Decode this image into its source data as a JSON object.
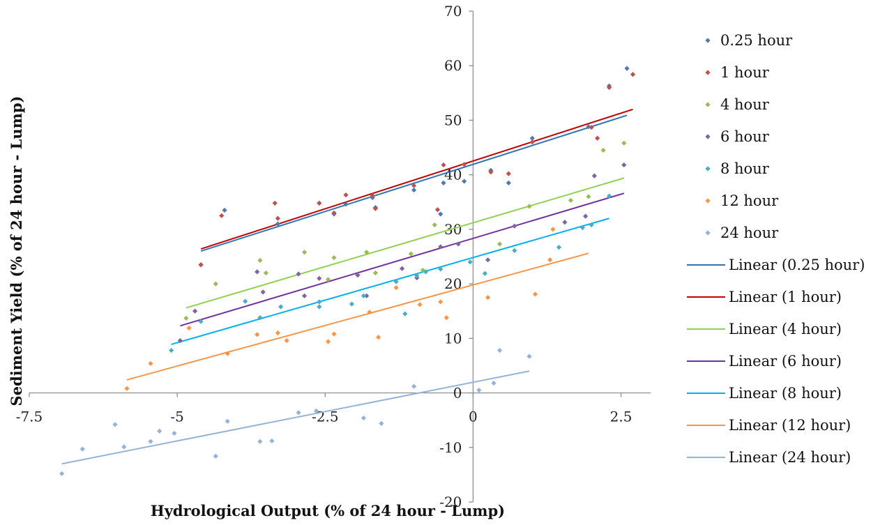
{
  "chart_data": {
    "type": "scatter",
    "title": "",
    "xlabel": "Hydrological Output (% of 24 hour - Lump)",
    "ylabel": "Sediment Yield (% of 24 hour - Lump)",
    "xlim": [
      -7.5,
      3
    ],
    "ylim": [
      -20,
      70
    ],
    "x_ticks": [
      "-7.5",
      "-5",
      "-2.5",
      "0",
      "2.5"
    ],
    "y_ticks": [
      "-20",
      "-10",
      "0",
      "10",
      "20",
      "30",
      "40",
      "50",
      "60",
      "70"
    ],
    "x_tick_values": [
      -7.5,
      -5,
      -2.5,
      0,
      2.5
    ],
    "y_tick_values": [
      -20,
      -10,
      0,
      10,
      20,
      30,
      40,
      50,
      60,
      70
    ],
    "legend_position": "right",
    "grid": false,
    "series": [
      {
        "name": "0.25 hour",
        "color": "#4a7bb5",
        "points": [
          [
            -4.6,
            23.5
          ],
          [
            -4.2,
            33.5
          ],
          [
            -3.3,
            31
          ],
          [
            -2.6,
            34.8
          ],
          [
            -2.35,
            32.8
          ],
          [
            -2.15,
            34.6
          ],
          [
            -1.7,
            35.8
          ],
          [
            -1.65,
            34
          ],
          [
            -1.0,
            37.2
          ],
          [
            -0.55,
            32.8
          ],
          [
            -0.5,
            38.5
          ],
          [
            -0.15,
            38.8
          ],
          [
            0.3,
            40.8
          ],
          [
            0.6,
            38.5
          ],
          [
            1.0,
            46.7
          ],
          [
            1.95,
            48.8
          ],
          [
            2.3,
            56.3
          ],
          [
            2.6,
            59.5
          ]
        ]
      },
      {
        "name": "1 hour",
        "color": "#c0504d",
        "points": [
          [
            -4.6,
            23.5
          ],
          [
            -4.25,
            32.5
          ],
          [
            -3.35,
            34.8
          ],
          [
            -3.3,
            32
          ],
          [
            -2.6,
            34.8
          ],
          [
            -2.35,
            33
          ],
          [
            -2.15,
            36.3
          ],
          [
            -1.7,
            36.2
          ],
          [
            -1.65,
            33.8
          ],
          [
            -1.0,
            38
          ],
          [
            -0.6,
            33.6
          ],
          [
            -0.5,
            41.8
          ],
          [
            -0.15,
            41.9
          ],
          [
            0.3,
            40.5
          ],
          [
            0.6,
            40.2
          ],
          [
            1.0,
            46
          ],
          [
            2.0,
            48.7
          ],
          [
            2.1,
            46.7
          ],
          [
            2.3,
            56
          ],
          [
            2.7,
            58.4
          ]
        ]
      },
      {
        "name": "4 hour",
        "color": "#9bbb59",
        "points": [
          [
            -4.85,
            13.7
          ],
          [
            -4.35,
            20
          ],
          [
            -3.6,
            24.3
          ],
          [
            -3.5,
            22
          ],
          [
            -2.85,
            25.8
          ],
          [
            -2.45,
            20.8
          ],
          [
            -2.35,
            24.8
          ],
          [
            -1.95,
            21.6
          ],
          [
            -1.8,
            25.8
          ],
          [
            -1.65,
            22
          ],
          [
            -1.2,
            22.8
          ],
          [
            -1.05,
            25.5
          ],
          [
            -0.85,
            22.5
          ],
          [
            -0.65,
            30.8
          ],
          [
            0.45,
            27.3
          ],
          [
            0.95,
            34.2
          ],
          [
            1.65,
            35.3
          ],
          [
            1.95,
            36
          ],
          [
            2.2,
            44.5
          ],
          [
            2.55,
            45.8
          ]
        ]
      },
      {
        "name": "6 hour",
        "color": "#8064a2",
        "points": [
          [
            -4.95,
            9.6
          ],
          [
            -4.7,
            15
          ],
          [
            -3.65,
            22.2
          ],
          [
            -3.55,
            18.5
          ],
          [
            -2.95,
            21.8
          ],
          [
            -2.85,
            17.8
          ],
          [
            -2.6,
            21
          ],
          [
            -1.95,
            21.6
          ],
          [
            -1.8,
            17.8
          ],
          [
            -1.2,
            22.8
          ],
          [
            -0.95,
            21.1
          ],
          [
            -0.55,
            26.8
          ],
          [
            -0.25,
            27.3
          ],
          [
            0.25,
            24.4
          ],
          [
            0.7,
            30.6
          ],
          [
            1.55,
            31.3
          ],
          [
            1.9,
            32.4
          ],
          [
            2.05,
            39.8
          ],
          [
            2.55,
            41.8
          ]
        ]
      },
      {
        "name": "8 hour",
        "color": "#4bacc6",
        "points": [
          [
            -5.1,
            7.8
          ],
          [
            -4.6,
            13.1
          ],
          [
            -3.85,
            16.8
          ],
          [
            -3.6,
            13.8
          ],
          [
            -3.25,
            15.8
          ],
          [
            -2.6,
            16.7
          ],
          [
            -2.6,
            15.8
          ],
          [
            -2.05,
            16.3
          ],
          [
            -1.85,
            17.8
          ],
          [
            -1.3,
            20.4
          ],
          [
            -1.15,
            14.5
          ],
          [
            -0.95,
            21.5
          ],
          [
            -0.8,
            22.2
          ],
          [
            -0.55,
            22.7
          ],
          [
            -0.05,
            24
          ],
          [
            0.2,
            21.9
          ],
          [
            0.7,
            26.1
          ],
          [
            1.45,
            26.7
          ],
          [
            1.85,
            30.3
          ],
          [
            2.0,
            30.8
          ],
          [
            2.3,
            36.1
          ]
        ]
      },
      {
        "name": "12 hour",
        "color": "#f79646",
        "points": [
          [
            -5.85,
            0.8
          ],
          [
            -5.45,
            5.4
          ],
          [
            -4.8,
            11.9
          ],
          [
            -4.15,
            7.2
          ],
          [
            -3.65,
            10.7
          ],
          [
            -3.3,
            11
          ],
          [
            -3.15,
            9.6
          ],
          [
            -2.45,
            9.4
          ],
          [
            -2.35,
            10.8
          ],
          [
            -1.75,
            14.8
          ],
          [
            -1.6,
            10.2
          ],
          [
            -1.3,
            19.3
          ],
          [
            -0.9,
            16.2
          ],
          [
            -0.55,
            16.7
          ],
          [
            -0.45,
            13.8
          ],
          [
            0.25,
            17.5
          ],
          [
            1.05,
            18.1
          ],
          [
            1.3,
            24.4
          ],
          [
            1.35,
            30
          ]
        ]
      },
      {
        "name": "24 hour",
        "color": "#95b3d7",
        "points": [
          [
            -6.95,
            -14.8
          ],
          [
            -6.6,
            -10.3
          ],
          [
            -6.05,
            -5.8
          ],
          [
            -5.9,
            -9.9
          ],
          [
            -5.45,
            -8.9
          ],
          [
            -5.3,
            -7
          ],
          [
            -5.05,
            -7.4
          ],
          [
            -4.35,
            -11.6
          ],
          [
            -4.15,
            -5.2
          ],
          [
            -3.6,
            -8.9
          ],
          [
            -3.4,
            -8.8
          ],
          [
            -2.95,
            -3.6
          ],
          [
            -2.65,
            -3.3
          ],
          [
            -1.85,
            -4.6
          ],
          [
            -1.55,
            -5.6
          ],
          [
            -1.0,
            1.2
          ],
          [
            0.1,
            0.5
          ],
          [
            0.35,
            1.8
          ],
          [
            0.45,
            7.8
          ],
          [
            0.95,
            6.7
          ]
        ]
      }
    ],
    "trendlines": [
      {
        "name": "Linear (0.25 hour)",
        "color": "#2e75b6",
        "x": [
          -4.6,
          2.6
        ],
        "y": [
          26.0,
          50.9
        ]
      },
      {
        "name": "Linear (1 hour)",
        "color": "#c00000",
        "x": [
          -4.6,
          2.7
        ],
        "y": [
          26.4,
          52.0
        ]
      },
      {
        "name": "Linear (4 hour)",
        "color": "#92d050",
        "x": [
          -4.85,
          2.55
        ],
        "y": [
          15.6,
          39.4
        ]
      },
      {
        "name": "Linear (6 hour)",
        "color": "#7030a0",
        "x": [
          -4.95,
          2.55
        ],
        "y": [
          12.3,
          36.6
        ]
      },
      {
        "name": "Linear (8 hour)",
        "color": "#00b0f0",
        "x": [
          -5.1,
          2.3
        ],
        "y": [
          8.9,
          32.0
        ]
      },
      {
        "name": "Linear (12 hour)",
        "color": "#f79646",
        "x": [
          -5.85,
          1.95
        ],
        "y": [
          2.4,
          25.6
        ]
      },
      {
        "name": "Linear (24 hour)",
        "color": "#95b3d7",
        "x": [
          -6.95,
          0.95
        ],
        "y": [
          -13.0,
          4.0
        ]
      }
    ]
  }
}
